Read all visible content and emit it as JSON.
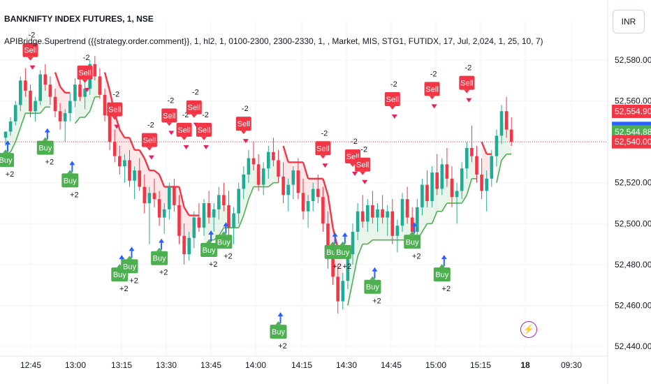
{
  "header": {
    "symbol": "BANKNIFTY INDEX FUTURES, 1, NSE",
    "indicator": "APIBridge.Supertrend ({{strategy.order.comment}}, 1, hl2, 1, 0100-2300, 2300-2330, 1, , Market, MIS, STG1, FUTIDX, 17, Jul, 2,024, 1, 25, 10, 7)",
    "currency": "INR"
  },
  "icons": {
    "bolt": "lightning-bolt-icon"
  },
  "colors": {
    "up": "#22ab94",
    "down": "#f23645",
    "buy": "#4caf50",
    "sell": "#f23645",
    "arrow": "#2962ff"
  },
  "chart_data": {
    "type": "candlestick",
    "y_ticks": [
      "52,580.00",
      "52,560.00",
      "52,540.00",
      "52,520.00",
      "52,500.00",
      "52,480.00",
      "52,460.00",
      "52,440.00"
    ],
    "y_tick_values": [
      52580,
      52560,
      52540,
      52520,
      52500,
      52480,
      52460,
      52440
    ],
    "ylim": [
      52434,
      52590
    ],
    "x_ticks": [
      "12:45",
      "13:00",
      "13:15",
      "13:30",
      "13:45",
      "14:00",
      "14:15",
      "14:30",
      "14:45",
      "15:00",
      "15:15",
      "18",
      "09:30"
    ],
    "price_labels": [
      {
        "text": "52,554.90",
        "value": 52554.9,
        "color": "#f23645"
      },
      {
        "text": "52,546.58",
        "value": 52546.58,
        "color": "#2962ff"
      },
      {
        "text": "52,544.88",
        "value": 52544.88,
        "color": "#4caf50"
      },
      {
        "text": "52,540.00",
        "value": 52540.0,
        "color": "#f23645"
      }
    ],
    "current_price": 52540.0,
    "candles": [
      [
        52542,
        52545,
        52538,
        52545
      ],
      [
        52545,
        52552,
        52543,
        52550
      ],
      [
        52550,
        52560,
        52548,
        52558
      ],
      [
        52558,
        52572,
        52555,
        52570
      ],
      [
        52570,
        52576,
        52562,
        52565
      ],
      [
        52565,
        52568,
        52552,
        52555
      ],
      [
        52555,
        52562,
        52550,
        52560
      ],
      [
        52560,
        52575,
        52558,
        52573
      ],
      [
        52573,
        52578,
        52565,
        52568
      ],
      [
        52568,
        52572,
        52558,
        52562
      ],
      [
        52562,
        52566,
        52552,
        52555
      ],
      [
        52555,
        52559,
        52546,
        52550
      ],
      [
        52550,
        52556,
        52540,
        52554
      ],
      [
        52554,
        52564,
        52550,
        52560
      ],
      [
        52560,
        52571,
        52557,
        52568
      ],
      [
        52568,
        52574,
        52560,
        52562
      ],
      [
        52562,
        52570,
        52556,
        52566
      ],
      [
        52566,
        52580,
        52563,
        52578
      ],
      [
        52578,
        52582,
        52570,
        52572
      ],
      [
        52572,
        52576,
        52561,
        52563
      ],
      [
        52563,
        52566,
        52550,
        52553
      ],
      [
        52553,
        52557,
        52536,
        52540
      ],
      [
        52540,
        52546,
        52530,
        52533
      ],
      [
        52533,
        52538,
        52524,
        52528
      ],
      [
        52528,
        52534,
        52520,
        52531
      ],
      [
        52531,
        52536,
        52518,
        52521
      ],
      [
        52521,
        52528,
        52512,
        52526
      ],
      [
        52526,
        52532,
        52516,
        52518
      ],
      [
        52518,
        52524,
        52505,
        52510
      ],
      [
        52510,
        52518,
        52490,
        52515
      ],
      [
        52515,
        52522,
        52508,
        52512
      ],
      [
        52512,
        52516,
        52499,
        52503
      ],
      [
        52503,
        52510,
        52495,
        52507
      ],
      [
        52507,
        52520,
        52502,
        52518
      ],
      [
        52518,
        52522,
        52506,
        52509
      ],
      [
        52509,
        52514,
        52490,
        52494
      ],
      [
        52494,
        52500,
        52480,
        52485
      ],
      [
        52485,
        52496,
        52482,
        52493
      ],
      [
        52493,
        52506,
        52488,
        52503
      ],
      [
        52503,
        52510,
        52496,
        52498
      ],
      [
        52498,
        52512,
        52494,
        52510
      ],
      [
        52510,
        52516,
        52500,
        52503
      ],
      [
        52503,
        52510,
        52496,
        52507
      ],
      [
        52507,
        52518,
        52502,
        52514
      ],
      [
        52514,
        52520,
        52506,
        52509
      ],
      [
        52509,
        52516,
        52494,
        52498
      ],
      [
        52498,
        52508,
        52490,
        52505
      ],
      [
        52505,
        52520,
        52500,
        52517
      ],
      [
        52517,
        52528,
        52512,
        52524
      ],
      [
        52524,
        52536,
        52520,
        52532
      ],
      [
        52532,
        52540,
        52526,
        52529
      ],
      [
        52529,
        52534,
        52516,
        52519
      ],
      [
        52519,
        52530,
        52514,
        52527
      ],
      [
        52527,
        52538,
        52522,
        52535
      ],
      [
        52535,
        52542,
        52528,
        52531
      ],
      [
        52531,
        52536,
        52520,
        52523
      ],
      [
        52523,
        52530,
        52510,
        52514
      ],
      [
        52514,
        52522,
        52506,
        52519
      ],
      [
        52519,
        52528,
        52512,
        52526
      ],
      [
        52526,
        52532,
        52512,
        52515
      ],
      [
        52515,
        52522,
        52502,
        52506
      ],
      [
        52506,
        52514,
        52498,
        52511
      ],
      [
        52511,
        52520,
        52506,
        52517
      ],
      [
        52517,
        52524,
        52510,
        52513
      ],
      [
        52513,
        52518,
        52496,
        52500
      ],
      [
        52500,
        52506,
        52478,
        52484
      ],
      [
        52484,
        52490,
        52470,
        52474
      ],
      [
        52474,
        52480,
        52456,
        52462
      ],
      [
        52462,
        52476,
        52458,
        52472
      ],
      [
        52472,
        52488,
        52468,
        52485
      ],
      [
        52485,
        52500,
        52480,
        52496
      ],
      [
        52496,
        52510,
        52492,
        52506
      ],
      [
        52506,
        52514,
        52498,
        52501
      ],
      [
        52501,
        52512,
        52496,
        52509
      ],
      [
        52509,
        52516,
        52500,
        52503
      ],
      [
        52503,
        52510,
        52496,
        52507
      ],
      [
        52507,
        52514,
        52500,
        52503
      ],
      [
        52503,
        52509,
        52494,
        52506
      ],
      [
        52506,
        52512,
        52490,
        52494
      ],
      [
        52494,
        52502,
        52486,
        52499
      ],
      [
        52499,
        52515,
        52496,
        52512
      ],
      [
        52512,
        52518,
        52500,
        52503
      ],
      [
        52503,
        52508,
        52492,
        52496
      ],
      [
        52496,
        52512,
        52492,
        52508
      ],
      [
        52508,
        52522,
        52504,
        52519
      ],
      [
        52519,
        52526,
        52508,
        52511
      ],
      [
        52511,
        52528,
        52508,
        52525
      ],
      [
        52525,
        52534,
        52514,
        52517
      ],
      [
        52517,
        52532,
        52514,
        52529
      ],
      [
        52529,
        52537,
        52518,
        52522
      ],
      [
        52522,
        52528,
        52508,
        52513
      ],
      [
        52513,
        52520,
        52500,
        52516
      ],
      [
        52516,
        52530,
        52512,
        52527
      ],
      [
        52527,
        52540,
        52522,
        52537
      ],
      [
        52537,
        52548,
        52530,
        52533
      ],
      [
        52533,
        52538,
        52520,
        52524
      ],
      [
        52524,
        52532,
        52512,
        52516
      ],
      [
        52516,
        52526,
        52506,
        52522
      ],
      [
        52522,
        52536,
        52518,
        52533
      ],
      [
        52533,
        52546,
        52528,
        52543
      ],
      [
        52543,
        52558,
        52539,
        52555
      ],
      [
        52555,
        52562,
        52542,
        52546
      ],
      [
        52546,
        52552,
        52538,
        52540
      ]
    ],
    "signals": [
      {
        "label": "Buy",
        "pos": "below",
        "idx": 0,
        "value": 52540,
        "qty": "+2"
      },
      {
        "label": "Sell",
        "pos": "above",
        "idx": 5,
        "value": 52576,
        "qty": "-2"
      },
      {
        "label": "Buy",
        "pos": "below",
        "idx": 8,
        "value": 52546,
        "qty": "+2"
      },
      {
        "label": "Buy",
        "pos": "below",
        "idx": 13,
        "value": 52530,
        "qty": "+2"
      },
      {
        "label": "Sell",
        "pos": "above",
        "idx": 16,
        "value": 52565,
        "qty": "-2"
      },
      {
        "label": "Sell",
        "pos": "above",
        "idx": 22,
        "value": 52547,
        "qty": "-2"
      },
      {
        "label": "Buy",
        "pos": "below",
        "idx": 23,
        "value": 52484,
        "qty": "+2"
      },
      {
        "label": "Buy",
        "pos": "below",
        "idx": 25,
        "value": 52488,
        "qty": "+2"
      },
      {
        "label": "Sell",
        "pos": "above",
        "idx": 29,
        "value": 52532,
        "qty": "-2"
      },
      {
        "label": "Buy",
        "pos": "below",
        "idx": 31,
        "value": 52492,
        "qty": "+2"
      },
      {
        "label": "Sell",
        "pos": "above",
        "idx": 33,
        "value": 52544,
        "qty": "-2"
      },
      {
        "label": "Sell",
        "pos": "above",
        "idx": 36,
        "value": 52537,
        "qty": "-2"
      },
      {
        "label": "Sell",
        "pos": "above",
        "idx": 38,
        "value": 52548,
        "qty": "-2"
      },
      {
        "label": "Sell",
        "pos": "above",
        "idx": 40,
        "value": 52537,
        "qty": "-2"
      },
      {
        "label": "Buy",
        "pos": "below",
        "idx": 41,
        "value": 52496,
        "qty": "+2"
      },
      {
        "label": "Buy",
        "pos": "below",
        "idx": 44,
        "value": 52500,
        "qty": "+2"
      },
      {
        "label": "Sell",
        "pos": "above",
        "idx": 48,
        "value": 52540,
        "qty": "-2"
      },
      {
        "label": "Buy",
        "pos": "below",
        "idx": 55,
        "value": 52456,
        "qty": "+2"
      },
      {
        "label": "Sell",
        "pos": "above",
        "idx": 64,
        "value": 52528,
        "qty": "-2"
      },
      {
        "label": "Buy",
        "pos": "below",
        "idx": 66,
        "value": 52495,
        "qty": "+2"
      },
      {
        "label": "Buy",
        "pos": "below",
        "idx": 68,
        "value": 52495,
        "qty": "+2"
      },
      {
        "label": "Sell",
        "pos": "above",
        "idx": 70,
        "value": 52524,
        "qty": "-2"
      },
      {
        "label": "Sell",
        "pos": "above",
        "idx": 72,
        "value": 52520,
        "qty": "-2"
      },
      {
        "label": "Buy",
        "pos": "below",
        "idx": 74,
        "value": 52478,
        "qty": "+2"
      },
      {
        "label": "Sell",
        "pos": "above",
        "idx": 78,
        "value": 52552,
        "qty": "-2"
      },
      {
        "label": "Buy",
        "pos": "below",
        "idx": 82,
        "value": 52500,
        "qty": "+2"
      },
      {
        "label": "Sell",
        "pos": "above",
        "idx": 86,
        "value": 52557,
        "qty": "-2"
      },
      {
        "label": "Buy",
        "pos": "below",
        "idx": 88,
        "value": 52484,
        "qty": "+2"
      },
      {
        "label": "Sell",
        "pos": "above",
        "idx": 93,
        "value": 52560,
        "qty": "-2"
      }
    ],
    "grid": true,
    "legend": "none"
  }
}
